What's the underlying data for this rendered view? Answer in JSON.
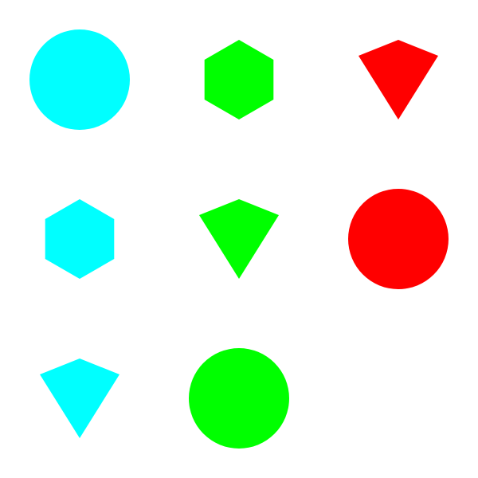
{
  "background_color": "#ffffff",
  "palette": {
    "cyan": "#00ffff",
    "green": "#00ff00",
    "red": "#ff0000"
  },
  "shapes": [
    {
      "row": 1,
      "col": 1,
      "kind": "circle",
      "color": "cyan"
    },
    {
      "row": 1,
      "col": 2,
      "kind": "hexagon",
      "color": "green"
    },
    {
      "row": 1,
      "col": 3,
      "kind": "kite",
      "color": "red"
    },
    {
      "row": 2,
      "col": 1,
      "kind": "hexagon",
      "color": "cyan"
    },
    {
      "row": 2,
      "col": 2,
      "kind": "kite",
      "color": "green"
    },
    {
      "row": 2,
      "col": 3,
      "kind": "circle",
      "color": "red"
    },
    {
      "row": 3,
      "col": 1,
      "kind": "kite",
      "color": "cyan"
    },
    {
      "row": 3,
      "col": 2,
      "kind": "circle",
      "color": "green"
    }
  ]
}
